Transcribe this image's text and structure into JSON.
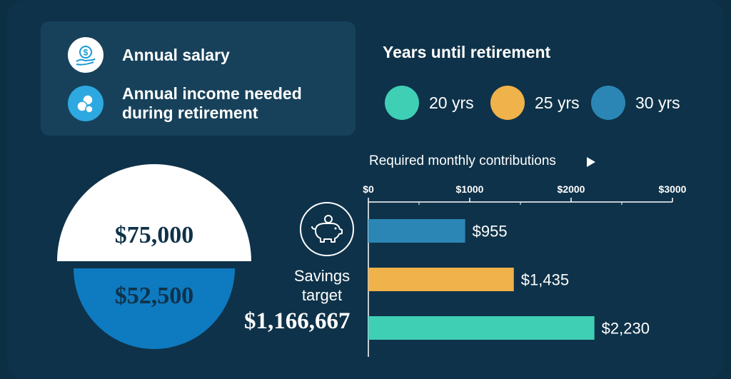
{
  "legend": {
    "items": [
      {
        "label": "Annual salary",
        "icon": "money-hand-icon",
        "color": "#ffffff"
      },
      {
        "label": "Annual income needed during retirement",
        "icon": "coins-icon",
        "color": "#2ea8e0"
      }
    ]
  },
  "years": {
    "title": "Years until retirement",
    "items": [
      {
        "label": "20 yrs",
        "color": "#3fcfb4"
      },
      {
        "label": "25 yrs",
        "color": "#f0b24a"
      },
      {
        "label": "30 yrs",
        "color": "#2b86b5"
      }
    ]
  },
  "salary": {
    "value": "$75,000"
  },
  "income_needed": {
    "value": "$52,500"
  },
  "savings": {
    "label": "Savings target",
    "value": "$1,166,667",
    "icon": "piggy-bank-icon"
  },
  "chart_data": {
    "type": "bar",
    "orientation": "horizontal",
    "title": "Required monthly contributions",
    "xlim": [
      0,
      3000
    ],
    "xticks": [
      {
        "value": 0,
        "label": "$0"
      },
      {
        "value": 1000,
        "label": "$1000"
      },
      {
        "value": 2000,
        "label": "$2000"
      },
      {
        "value": 3000,
        "label": "$3000"
      }
    ],
    "bars": [
      {
        "category": "30 yrs",
        "value": 955,
        "label": "$955",
        "color": "#2b86b5"
      },
      {
        "category": "25 yrs",
        "value": 1435,
        "label": "$1,435",
        "color": "#f0b24a"
      },
      {
        "category": "20 yrs",
        "value": 2230,
        "label": "$2,230",
        "color": "#3fcfb4"
      }
    ]
  }
}
